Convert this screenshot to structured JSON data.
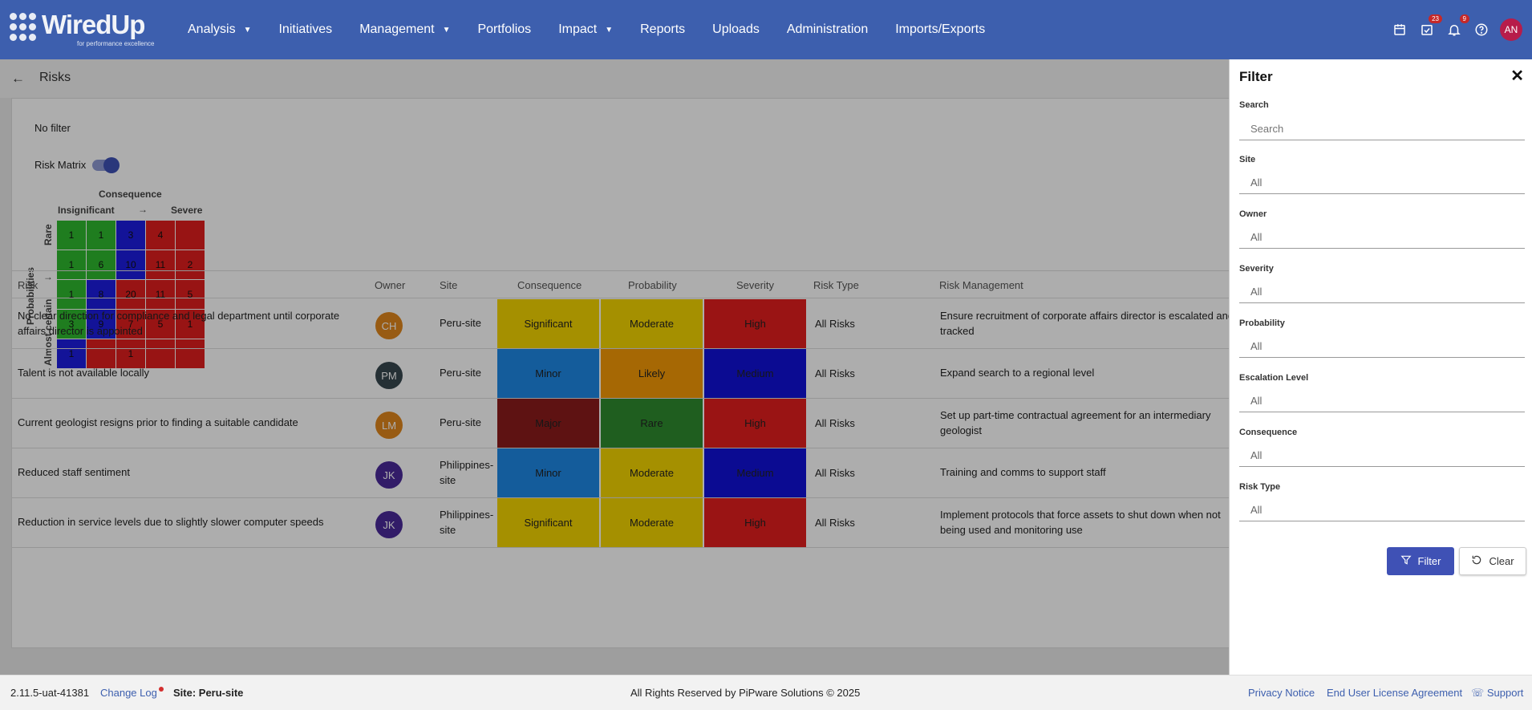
{
  "header": {
    "brand": "WiredUp",
    "tagline": "for performance excellence",
    "nav": [
      "Analysis",
      "Initiatives",
      "Management",
      "Portfolios",
      "Impact",
      "Reports",
      "Uploads",
      "Administration",
      "Imports/Exports"
    ],
    "badges": {
      "tasks": "23",
      "notifications": "9"
    },
    "avatar": "AN"
  },
  "page": {
    "title": "Risks",
    "filter_status": "No filter",
    "risk_matrix_label": "Risk Matrix"
  },
  "matrix": {
    "consequence_label": "Consequence",
    "consequence_low": "Insignificant",
    "consequence_high": "Severe",
    "arrow_right": "→",
    "arrow_down": "↓",
    "probabilities_label": "Probabilities",
    "prob_low": "Rare",
    "prob_high": "Almost certain",
    "rows": [
      [
        {
          "v": "1",
          "c": "#2fb82f"
        },
        {
          "v": "1",
          "c": "#2fb82f"
        },
        {
          "v": "3",
          "c": "#1c1ce0"
        },
        {
          "v": "4",
          "c": "#e11e1e"
        },
        {
          "v": "",
          "c": "#e11e1e"
        }
      ],
      [
        {
          "v": "1",
          "c": "#2fb82f"
        },
        {
          "v": "6",
          "c": "#2fb82f"
        },
        {
          "v": "10",
          "c": "#1c1ce0"
        },
        {
          "v": "11",
          "c": "#e11e1e"
        },
        {
          "v": "2",
          "c": "#e11e1e"
        }
      ],
      [
        {
          "v": "1",
          "c": "#2fb82f"
        },
        {
          "v": "8",
          "c": "#1c1ce0"
        },
        {
          "v": "20",
          "c": "#e11e1e"
        },
        {
          "v": "11",
          "c": "#e11e1e"
        },
        {
          "v": "5",
          "c": "#e11e1e"
        }
      ],
      [
        {
          "v": "3",
          "c": "#2fb82f"
        },
        {
          "v": "9",
          "c": "#1c1ce0"
        },
        {
          "v": "7",
          "c": "#e11e1e"
        },
        {
          "v": "5",
          "c": "#e11e1e"
        },
        {
          "v": "1",
          "c": "#e11e1e"
        }
      ],
      [
        {
          "v": "1",
          "c": "#1c1ce0"
        },
        {
          "v": "",
          "c": "#e11e1e"
        },
        {
          "v": "1",
          "c": "#e11e1e"
        },
        {
          "v": "",
          "c": "#e11e1e"
        },
        {
          "v": "",
          "c": "#e11e1e"
        }
      ]
    ]
  },
  "table": {
    "columns": [
      "Risk",
      "Owner",
      "Site",
      "Consequence",
      "Probability",
      "Severity",
      "Risk Type",
      "Risk Management"
    ],
    "rows": [
      {
        "risk": "No clear direction for compliance and legal department until corporate affairs director is appointed",
        "owner": "CH",
        "owner_color": "#e0861c",
        "site": "Peru-site",
        "consequence": "Significant",
        "consequence_color": "#f4d400",
        "probability": "Moderate",
        "probability_color": "#f4d400",
        "severity": "High",
        "severity_color": "#e31e1e",
        "risk_type": "All Risks",
        "management": "Ensure recruitment of corporate affairs director is escalated and tracked"
      },
      {
        "risk": "Talent is not available locally",
        "owner": "PM",
        "owner_color": "#37474f",
        "site": "Peru-site",
        "consequence": "Minor",
        "consequence_color": "#1e88e5",
        "probability": "Likely",
        "probability_color": "#f59a07",
        "severity": "Medium",
        "severity_color": "#1111d8",
        "risk_type": "All Risks",
        "management": "Expand search to a regional level"
      },
      {
        "risk": "Current geologist resigns prior to finding a suitable candidate",
        "owner": "LM",
        "owner_color": "#e0861c",
        "site": "Peru-site",
        "consequence": "Major",
        "consequence_color": "#8b1b1b",
        "probability": "Rare",
        "probability_color": "#2e8b2e",
        "severity": "High",
        "severity_color": "#e31e1e",
        "risk_type": "All Risks",
        "management": "Set up part-time contractual agreement for an intermediary geologist"
      },
      {
        "risk": "Reduced staff sentiment",
        "owner": "JK",
        "owner_color": "#4a2a9a",
        "site": "Philippines-site",
        "consequence": "Minor",
        "consequence_color": "#1e88e5",
        "probability": "Moderate",
        "probability_color": "#f4d400",
        "severity": "Medium",
        "severity_color": "#1111d8",
        "risk_type": "All Risks",
        "management": "Training and comms to support staff"
      },
      {
        "risk": "Reduction in service levels due to slightly slower computer speeds",
        "owner": "JK",
        "owner_color": "#4a2a9a",
        "site": "Philippines-site",
        "consequence": "Significant",
        "consequence_color": "#f4d400",
        "probability": "Moderate",
        "probability_color": "#f4d400",
        "severity": "High",
        "severity_color": "#e31e1e",
        "risk_type": "All Risks",
        "management": "Implement protocols that force assets to shut down when not being used and monitoring use"
      }
    ]
  },
  "filter": {
    "title": "Filter",
    "search_label": "Search",
    "search_placeholder": "Search",
    "fields": [
      {
        "label": "Site",
        "value": "All"
      },
      {
        "label": "Owner",
        "value": "All"
      },
      {
        "label": "Severity",
        "value": "All"
      },
      {
        "label": "Probability",
        "value": "All"
      },
      {
        "label": "Escalation Level",
        "value": "All"
      },
      {
        "label": "Consequence",
        "value": "All"
      },
      {
        "label": "Risk Type",
        "value": "All"
      }
    ],
    "filter_button": "Filter",
    "clear_button": "Clear"
  },
  "footer": {
    "version": "2.11.5-uat-41381",
    "change_log": "Change Log",
    "site_label": "Site: Peru-site",
    "copyright": "All Rights Reserved by PiPware Solutions © 2025",
    "privacy": "Privacy Notice",
    "eula": "End User License Agreement",
    "support": "Support"
  }
}
